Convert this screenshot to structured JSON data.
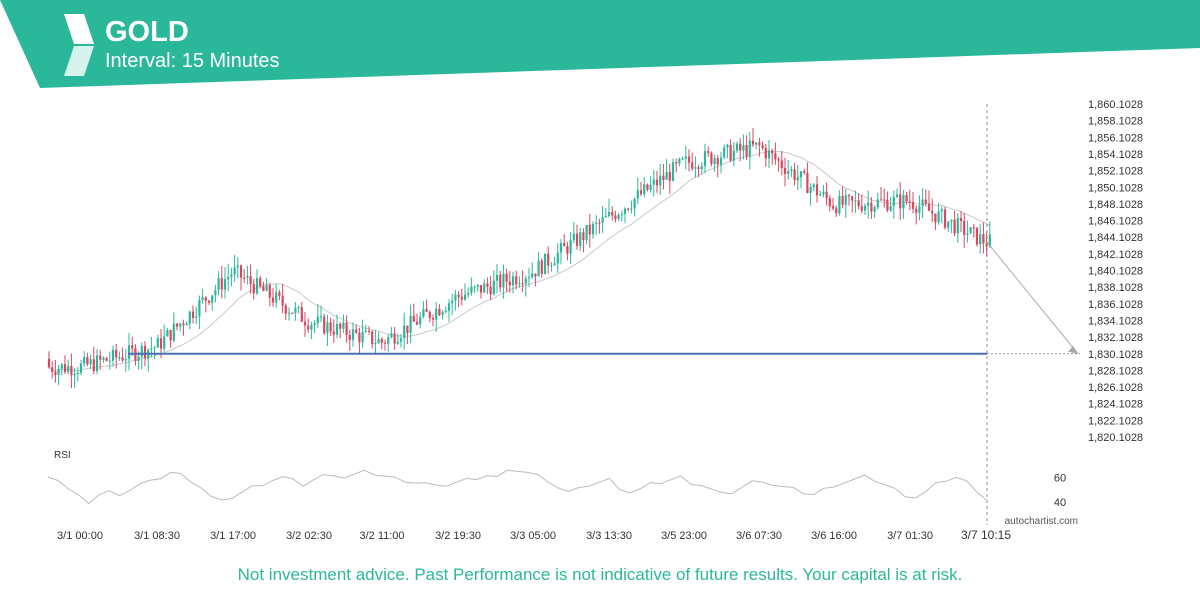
{
  "header": {
    "symbol": "GOLD",
    "interval": "Interval: 15 Minutes",
    "brand_color": "#2bb89a"
  },
  "footer": {
    "disclaimer": "Not investment advice. Past Performance is not indicative of future results. Your capital is at risk.",
    "watermark": "autochartist.com"
  },
  "chart_data": {
    "type": "candlestick",
    "title": "GOLD",
    "y_ticks": [
      "1,860.1028",
      "1,858.1028",
      "1,856.1028",
      "1,854.1028",
      "1,852.1028",
      "1,850.1028",
      "1,848.1028",
      "1,846.1028",
      "1,844.1028",
      "1,842.1028",
      "1,840.1028",
      "1,838.1028",
      "1,836.1028",
      "1,834.1028",
      "1,832.1028",
      "1,830.1028",
      "1,828.1028",
      "1,826.1028",
      "1,824.1028",
      "1,822.1028",
      "1,820.1028"
    ],
    "ylim": [
      1818.1,
      1861.0
    ],
    "x_ticks": [
      "3/1 00:00",
      "3/1 08:30",
      "3/1 17:00",
      "3/2 02:30",
      "3/2 11:00",
      "3/2 19:30",
      "3/3 05:00",
      "3/3 13:30",
      "3/5 23:00",
      "3/6 07:30",
      "3/6 16:00",
      "3/7 01:30",
      "3/7 10:15"
    ],
    "price_path_approx": [
      {
        "x": "3/1 00:00",
        "y": 1828.5
      },
      {
        "x": "3/1 08:30",
        "y": 1831.0
      },
      {
        "x": "3/1 17:00",
        "y": 1840.0
      },
      {
        "x": "3/2 02:30",
        "y": 1834.0
      },
      {
        "x": "3/2 11:00",
        "y": 1831.5
      },
      {
        "x": "3/2 19:30",
        "y": 1837.0
      },
      {
        "x": "3/3 05:00",
        "y": 1840.0
      },
      {
        "x": "3/3 13:30",
        "y": 1846.5
      },
      {
        "x": "3/5 23:00",
        "y": 1853.0
      },
      {
        "x": "3/6 07:30",
        "y": 1855.0
      },
      {
        "x": "3/6 16:00",
        "y": 1848.0
      },
      {
        "x": "3/7 01:30",
        "y": 1848.5
      },
      {
        "x": "3/7 10:15",
        "y": 1843.5
      }
    ],
    "moving_average": {
      "color": "#c8c8c8"
    },
    "support_level": {
      "value": 1830.1028,
      "color": "#4c6fb5"
    },
    "projection": {
      "from": 1843.5,
      "to": 1830.1028
    },
    "current_time_marker": "3/7 10:15",
    "candle_colors": {
      "up": "#2bb89a",
      "down": "#d9475e"
    },
    "rsi": {
      "label": "RSI",
      "ticks": [
        "60",
        "40"
      ],
      "ylim": [
        32,
        70
      ],
      "line_color": "#bbbbbb",
      "values_approx": [
        62,
        58,
        50,
        44,
        40,
        46,
        48,
        47,
        50,
        54,
        56,
        60,
        64,
        62,
        58,
        52,
        44,
        40,
        44,
        48,
        52,
        55,
        58,
        60,
        57,
        54,
        58,
        61,
        63,
        60,
        62,
        64,
        63,
        61,
        59,
        58,
        56,
        55,
        52,
        54,
        56,
        58,
        60,
        62,
        60,
        64,
        66,
        64,
        61,
        58,
        52,
        48,
        50,
        54,
        56,
        58,
        52,
        48,
        50,
        54,
        56,
        58,
        60,
        56,
        54,
        50,
        46,
        48,
        52,
        56,
        58,
        54,
        52,
        50,
        48,
        46,
        50,
        54,
        56,
        58,
        60,
        58,
        54,
        50,
        46,
        44,
        48,
        54,
        58,
        60,
        56,
        50,
        42
      ]
    }
  }
}
